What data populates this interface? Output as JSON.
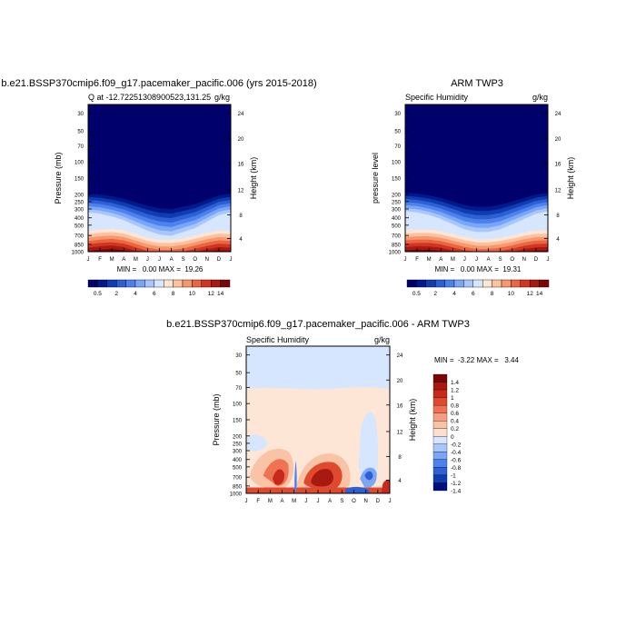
{
  "chart_data": [
    {
      "type": "heatmap",
      "title": "b.e21.BSSP370cmip6.f09_g17.pacemaker_pacific.006 (yrs 2015-2018)",
      "subtitle_left": "Q at -12.72251308900523,131.25",
      "subtitle_right": "g/kg",
      "ylabel": "Pressure (mb)",
      "ylabel_right": "Height (km)",
      "x_ticks": [
        "J",
        "F",
        "M",
        "A",
        "M",
        "J",
        "J",
        "A",
        "S",
        "O",
        "N",
        "D",
        "J"
      ],
      "y_ticks": [
        "30",
        "50",
        "70",
        "100",
        "150",
        "200",
        "250",
        "300",
        "400",
        "500",
        "700",
        "850",
        "1000"
      ],
      "y_ticks_right": [
        "24",
        "20",
        "16",
        "12",
        "8",
        "4"
      ],
      "stats": "MIN =   0.00 MAX =  19.26",
      "colorbar_labels": [
        "0.5",
        "2",
        "4",
        "6",
        "8",
        "10",
        "12",
        "14"
      ],
      "moisture_top_pressure": [
        330,
        340,
        360,
        390,
        430,
        470,
        500,
        510,
        480,
        450,
        400,
        350,
        330
      ],
      "surface_q_gkg": [
        16.5,
        17.5,
        18.0,
        17.0,
        14.5,
        12.0,
        10.5,
        10.5,
        11.5,
        13.5,
        15.5,
        17.0,
        16.5
      ]
    },
    {
      "type": "heatmap",
      "title": "ARM TWP3",
      "subtitle_left": "Specific Humidity",
      "subtitle_right": "g/kg",
      "ylabel": "pressure level",
      "ylabel_right": "Height (km)",
      "x_ticks": [
        "J",
        "F",
        "M",
        "A",
        "M",
        "J",
        "J",
        "A",
        "S",
        "O",
        "N",
        "D",
        "J"
      ],
      "y_ticks": [
        "30",
        "50",
        "70",
        "100",
        "150",
        "200",
        "250",
        "300",
        "400",
        "500",
        "700",
        "850",
        "1000"
      ],
      "y_ticks_right": [
        "24",
        "20",
        "16",
        "12",
        "8",
        "4"
      ],
      "stats": "MIN =   0.00 MAX =  19.31",
      "colorbar_labels": [
        "0.5",
        "2",
        "4",
        "6",
        "8",
        "10",
        "12",
        "14"
      ],
      "moisture_top_pressure": [
        320,
        330,
        350,
        380,
        420,
        460,
        480,
        480,
        460,
        420,
        380,
        340,
        320
      ],
      "surface_q_gkg": [
        17.0,
        17.5,
        17.5,
        16.5,
        14.5,
        12.5,
        11.0,
        11.0,
        12.0,
        13.5,
        15.5,
        16.8,
        17.0
      ]
    },
    {
      "type": "heatmap",
      "title": "b.e21.BSSP370cmip6.f09_g17.pacemaker_pacific.006 - ARM TWP3",
      "subtitle_left": "Specific Humidity",
      "subtitle_right": "g/kg",
      "ylabel": "Pressure (mb)",
      "ylabel_right": "Height (km)",
      "x_ticks": [
        "J",
        "F",
        "M",
        "A",
        "M",
        "J",
        "J",
        "A",
        "S",
        "O",
        "N",
        "D",
        "J"
      ],
      "y_ticks": [
        "30",
        "50",
        "70",
        "100",
        "150",
        "200",
        "250",
        "300",
        "400",
        "500",
        "700",
        "850",
        "1000"
      ],
      "y_ticks_right": [
        "24",
        "20",
        "16",
        "12",
        "8",
        "4"
      ],
      "stats": "MIN =  -3.22 MAX =   3.44",
      "colorbar_labels": [
        "1.4",
        "1.2",
        "1",
        "0.8",
        "0.6",
        "0.4",
        "0.2",
        "0",
        "-0.2",
        "-0.4",
        "-0.6",
        "-0.8",
        "-1",
        "-1.2",
        "-1.4"
      ]
    }
  ],
  "palettes": {
    "humidity": [
      "#00006d",
      "#001a8c",
      "#0f3cb0",
      "#2e5fd4",
      "#4d82ee",
      "#7aa6f6",
      "#a8c6fb",
      "#d6e6fe",
      "#fde6d6",
      "#fcc2a0",
      "#f6976c",
      "#ea6543",
      "#d13522",
      "#a81912",
      "#7a0707"
    ],
    "difference": [
      "#7a0707",
      "#a81912",
      "#c72a1c",
      "#df4a2f",
      "#ef7352",
      "#f59d7d",
      "#f9c3a6",
      "#fde0cb",
      "#d6e6fe",
      "#a8c6fb",
      "#7aa6f6",
      "#4d82ee",
      "#2e5fd4",
      "#0f3cb0",
      "#000f80"
    ]
  }
}
